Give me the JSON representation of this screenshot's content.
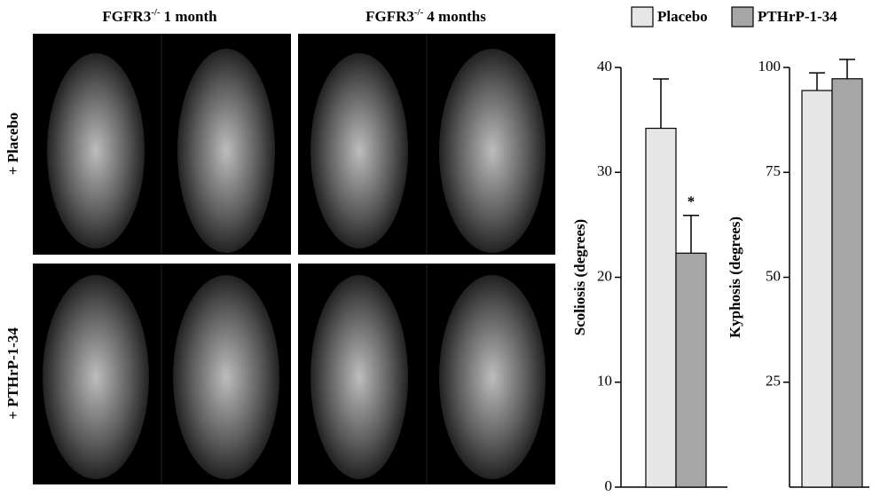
{
  "figure": {
    "columns": [
      {
        "gene": "FGFR3",
        "superscript": "-/-",
        "time": "1 month"
      },
      {
        "gene": "FGFR3",
        "superscript": "-/-",
        "time": "4 months"
      }
    ],
    "rows": [
      "+ Placebo",
      "+ PTHrP-1-34"
    ]
  },
  "chart_data": [
    {
      "type": "bar",
      "y_label": "Scoliosis (degrees)",
      "ylim": [
        0,
        40
      ],
      "yticks": [
        0,
        10,
        20,
        30,
        40
      ],
      "series": [
        {
          "name": "Placebo",
          "color": "#e6e6e6",
          "values": [
            34.2
          ],
          "errors": [
            4.7
          ]
        },
        {
          "name": "PTHrP-1-34",
          "color": "#a6a6a6",
          "values": [
            22.3
          ],
          "errors": [
            3.6
          ]
        }
      ],
      "annotation": "*"
    },
    {
      "type": "bar",
      "y_label": "Kyphosis (degrees)",
      "ylim": [
        0,
        100
      ],
      "yticks": [
        25,
        50,
        75,
        100
      ],
      "series": [
        {
          "color": "#e6e6e6",
          "values": [
            94.5
          ],
          "errors": [
            4.2
          ]
        },
        {
          "color": "#a6a6a6",
          "values": [
            97.3
          ],
          "errors": [
            4.6
          ]
        }
      ]
    }
  ]
}
